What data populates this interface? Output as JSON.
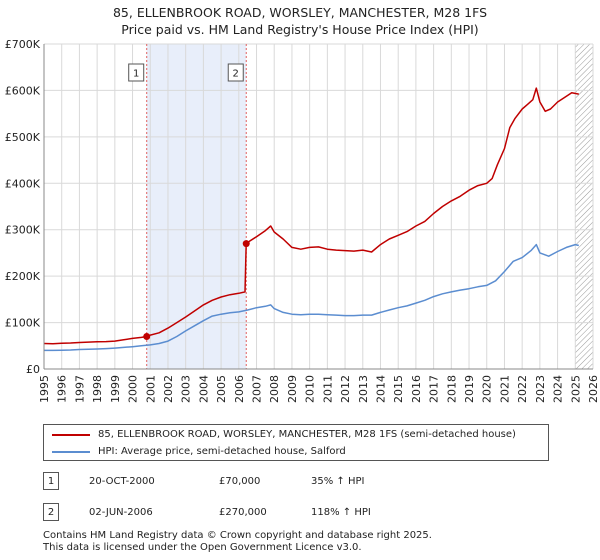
{
  "title": {
    "line1": "85, ELLENBROOK ROAD, WORSLEY, MANCHESTER, M28 1FS",
    "line2": "Price paid vs. HM Land Registry's House Price Index (HPI)"
  },
  "colors": {
    "property": "#c00000",
    "hpi": "#5b8dd0",
    "shade": "#e8eefa",
    "grid": "#d9d9d9",
    "marker_line": "#e06060"
  },
  "chart_data": {
    "type": "line",
    "title": "Price paid vs. HM Land Registry's House Price Index (HPI)",
    "xlabel": "",
    "ylabel": "",
    "xlim": [
      1995,
      2026
    ],
    "ylim": [
      0,
      700000
    ],
    "y_ticks": [
      0,
      100000,
      200000,
      300000,
      400000,
      500000,
      600000,
      700000
    ],
    "y_tick_labels": [
      "£0",
      "£100K",
      "£200K",
      "£300K",
      "£400K",
      "£500K",
      "£600K",
      "£700K"
    ],
    "x_ticks": [
      1995,
      1996,
      1997,
      1998,
      1999,
      2000,
      2001,
      2002,
      2003,
      2004,
      2005,
      2006,
      2007,
      2008,
      2009,
      2010,
      2011,
      2012,
      2013,
      2014,
      2015,
      2016,
      2017,
      2018,
      2019,
      2020,
      2021,
      2022,
      2023,
      2024,
      2025,
      2026
    ],
    "shaded_period": [
      2000.8,
      2006.42
    ],
    "hatched_from": 2025.0,
    "series": [
      {
        "name": "85, ELLENBROOK ROAD, WORSLEY, MANCHESTER, M28 1FS (semi-detached house)",
        "x": [
          1995.0,
          1995.5,
          1996.0,
          1996.5,
          1997.0,
          1997.5,
          1998.0,
          1998.5,
          1999.0,
          1999.5,
          2000.0,
          2000.5,
          2000.8,
          2001.0,
          2001.5,
          2002.0,
          2002.5,
          2003.0,
          2003.5,
          2004.0,
          2004.5,
          2005.0,
          2005.5,
          2006.0,
          2006.35,
          2006.42,
          2006.6,
          2007.0,
          2007.5,
          2007.8,
          2008.0,
          2008.5,
          2009.0,
          2009.5,
          2010.0,
          2010.5,
          2011.0,
          2011.5,
          2012.0,
          2012.5,
          2013.0,
          2013.5,
          2014.0,
          2014.5,
          2015.0,
          2015.5,
          2016.0,
          2016.5,
          2017.0,
          2017.5,
          2018.0,
          2018.5,
          2019.0,
          2019.5,
          2020.0,
          2020.3,
          2020.6,
          2021.0,
          2021.3,
          2021.6,
          2022.0,
          2022.3,
          2022.6,
          2022.8,
          2023.0,
          2023.3,
          2023.6,
          2024.0,
          2024.4,
          2024.8,
          2025.2
        ],
        "values": [
          55000,
          54500,
          55500,
          56000,
          57000,
          58000,
          58500,
          59000,
          60000,
          63000,
          66000,
          68000,
          70000,
          73000,
          78000,
          88000,
          100000,
          112000,
          125000,
          138000,
          148000,
          155000,
          160000,
          163000,
          166000,
          270000,
          275000,
          285000,
          298000,
          308000,
          295000,
          280000,
          262000,
          258000,
          262000,
          263000,
          258000,
          256000,
          255000,
          254000,
          256000,
          252000,
          268000,
          280000,
          288000,
          296000,
          308000,
          318000,
          335000,
          350000,
          362000,
          372000,
          385000,
          395000,
          400000,
          410000,
          440000,
          475000,
          520000,
          540000,
          560000,
          570000,
          580000,
          605000,
          575000,
          555000,
          560000,
          575000,
          585000,
          595000,
          592000
        ]
      },
      {
        "name": "HPI: Average price, semi-detached house, Salford",
        "x": [
          1995.0,
          1995.5,
          1996.0,
          1996.5,
          1997.0,
          1997.5,
          1998.0,
          1998.5,
          1999.0,
          1999.5,
          2000.0,
          2000.5,
          2001.0,
          2001.5,
          2002.0,
          2002.5,
          2003.0,
          2003.5,
          2004.0,
          2004.5,
          2005.0,
          2005.5,
          2006.0,
          2006.5,
          2007.0,
          2007.5,
          2007.8,
          2008.0,
          2008.5,
          2009.0,
          2009.5,
          2010.0,
          2010.5,
          2011.0,
          2011.5,
          2012.0,
          2012.5,
          2013.0,
          2013.5,
          2014.0,
          2014.5,
          2015.0,
          2015.5,
          2016.0,
          2016.5,
          2017.0,
          2017.5,
          2018.0,
          2018.5,
          2019.0,
          2019.5,
          2020.0,
          2020.5,
          2021.0,
          2021.5,
          2022.0,
          2022.5,
          2022.8,
          2023.0,
          2023.5,
          2024.0,
          2024.5,
          2025.0,
          2025.2
        ],
        "values": [
          40000,
          40000,
          40500,
          41000,
          42000,
          42500,
          43000,
          44000,
          45000,
          46500,
          48000,
          50000,
          52000,
          55000,
          60000,
          70000,
          82000,
          93000,
          104000,
          114000,
          118000,
          121000,
          123000,
          127000,
          132000,
          135000,
          138000,
          130000,
          122000,
          118000,
          117000,
          118000,
          118000,
          117000,
          116000,
          115000,
          115000,
          116000,
          116000,
          122000,
          127000,
          132000,
          136000,
          142000,
          148000,
          156000,
          162000,
          166000,
          170000,
          173000,
          177000,
          180000,
          190000,
          210000,
          232000,
          240000,
          255000,
          268000,
          250000,
          243000,
          253000,
          262000,
          268000,
          266000
        ]
      }
    ],
    "sales": [
      {
        "label": "1",
        "x": 2000.8,
        "price": 70000,
        "date": "20-OCT-2000",
        "price_text": "£70,000",
        "hpi_text": "35% ↑ HPI"
      },
      {
        "label": "2",
        "x": 2006.42,
        "price": 270000,
        "date": "02-JUN-2006",
        "price_text": "£270,000",
        "hpi_text": "118% ↑ HPI"
      }
    ]
  },
  "legend": {
    "property_label": "85, ELLENBROOK ROAD, WORSLEY, MANCHESTER, M28 1FS (semi-detached house)",
    "hpi_label": "HPI: Average price, semi-detached house, Salford"
  },
  "footer": {
    "line1": "Contains HM Land Registry data © Crown copyright and database right 2025.",
    "line2": "This data is licensed under the Open Government Licence v3.0."
  }
}
